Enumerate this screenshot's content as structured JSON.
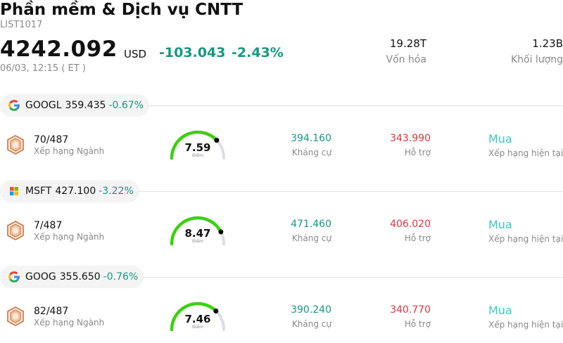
{
  "header": {
    "title": "Phần mềm & Dịch vụ CNTT",
    "code": "LIST1017",
    "price": "4242.092",
    "currency": "USD",
    "change": "-103.043 -2.43%",
    "time": "06/03, 12:15  ( ET )"
  },
  "stats": {
    "market_cap": {
      "value": "19.28T",
      "label": "Vốn hóa"
    },
    "volume": {
      "value": "1.23B",
      "label": "Khối lượng"
    }
  },
  "colors": {
    "up": "#14997f",
    "down": "#e0343f",
    "rating": "#3dc9c0"
  },
  "stocks": [
    {
      "symbol": "GOOGL",
      "price": "359.435",
      "change": "-0.67%",
      "logo": "google-icon",
      "rank": "70/487",
      "rank_label": "Xếp hạng Ngành",
      "score": "7.59",
      "score_label": "Điểm",
      "score_fraction": 0.759,
      "resistance": "394.160",
      "resistance_label": "Kháng cự",
      "support": "343.990",
      "support_label": "Hỗ trợ",
      "rating": "Mua",
      "rating_label": "Xếp hạng hiện tại"
    },
    {
      "symbol": "MSFT",
      "price": "427.100",
      "change": "-3.22%",
      "logo": "microsoft-icon",
      "rank": "7/487",
      "rank_label": "Xếp hạng Ngành",
      "score": "8.47",
      "score_label": "Điểm",
      "score_fraction": 0.847,
      "resistance": "471.460",
      "resistance_label": "Kháng cự",
      "support": "406.020",
      "support_label": "Hỗ trợ",
      "rating": "Mua",
      "rating_label": "Xếp hạng hiện tại"
    },
    {
      "symbol": "GOOG",
      "price": "355.650",
      "change": "-0.76%",
      "logo": "google-icon",
      "rank": "82/487",
      "rank_label": "Xếp hạng Ngành",
      "score": "7.46",
      "score_label": "Điểm",
      "score_fraction": 0.746,
      "resistance": "390.240",
      "resistance_label": "Kháng cự",
      "support": "340.770",
      "support_label": "Hỗ trợ",
      "rating": "Mua",
      "rating_label": "Xếp hạng hiện tại"
    }
  ]
}
